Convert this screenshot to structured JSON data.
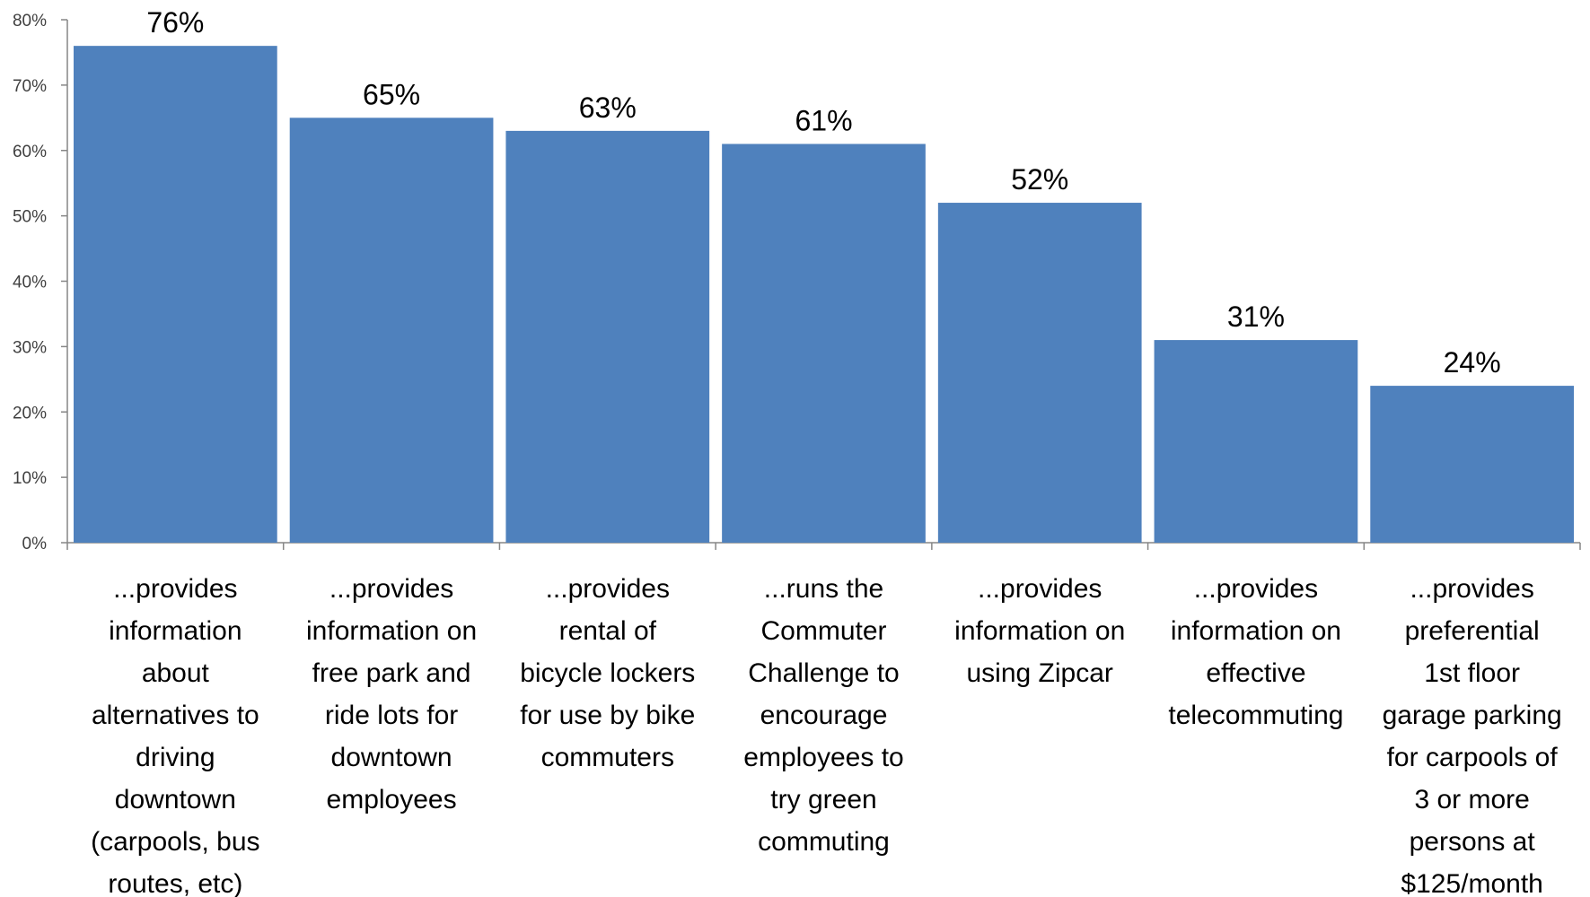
{
  "chart_data": {
    "type": "bar",
    "categories": [
      [
        "...provides",
        "information",
        "about",
        "alternatives to",
        "driving",
        "downtown",
        "(carpools, bus",
        "routes, etc)"
      ],
      [
        "...provides",
        "information on",
        "free park and",
        "ride lots for",
        "downtown",
        "employees"
      ],
      [
        "...provides",
        "rental of",
        "bicycle lockers",
        "for use by bike",
        "commuters"
      ],
      [
        "...runs the",
        "Commuter",
        "Challenge to",
        "encourage",
        "employees to",
        "try green",
        "commuting"
      ],
      [
        "...provides",
        "information on",
        "using Zipcar"
      ],
      [
        "...provides",
        "information on",
        "effective",
        "telecommuting"
      ],
      [
        "...provides",
        "preferential",
        "1st floor",
        "garage parking",
        "for carpools of",
        "3 or more",
        "persons at",
        "$125/month"
      ]
    ],
    "values": [
      76,
      65,
      63,
      61,
      52,
      31,
      24
    ],
    "data_labels": [
      "76%",
      "65%",
      "63%",
      "61%",
      "52%",
      "31%",
      "24%"
    ],
    "ylim": [
      0,
      80
    ],
    "yticks": [
      "0%",
      "10%",
      "20%",
      "30%",
      "40%",
      "50%",
      "60%",
      "70%",
      "80%"
    ],
    "bar_color": "#4f81bd",
    "grid": false,
    "legend": "none"
  }
}
